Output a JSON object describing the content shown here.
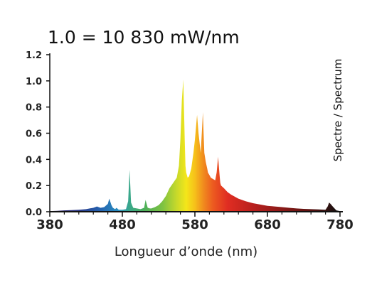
{
  "chart_data": {
    "type": "area",
    "title": "1.0 = 10 830 mW/nm",
    "xlabel": "Longueur d’onde (nm)",
    "ylabel": "",
    "side_label": "Spectre / Spectrum",
    "xlim": [
      380,
      780
    ],
    "ylim": [
      0,
      1.2
    ],
    "x_ticks": [
      "380",
      "480",
      "580",
      "680",
      "780"
    ],
    "y_ticks": [
      "0.0",
      "0.2",
      "0.4",
      "0.6",
      "0.8",
      "1.0",
      "1.2"
    ],
    "grid": false,
    "legend": "none",
    "fill": "rainbow spectrum gradient by wavelength",
    "x": [
      380,
      390,
      400,
      410,
      420,
      430,
      435,
      440,
      445,
      450,
      455,
      460,
      462,
      465,
      467,
      470,
      472,
      475,
      480,
      485,
      488,
      490,
      492,
      495,
      500,
      505,
      510,
      512,
      515,
      518,
      520,
      525,
      530,
      535,
      540,
      545,
      550,
      555,
      558,
      560,
      562,
      564,
      566,
      567,
      568,
      569,
      570,
      572,
      575,
      578,
      580,
      583,
      585,
      588,
      590,
      591,
      592,
      593,
      595,
      597,
      598,
      599,
      600,
      602,
      605,
      608,
      610,
      612,
      614,
      615,
      616,
      618,
      620,
      625,
      630,
      640,
      650,
      660,
      670,
      680,
      690,
      700,
      710,
      720,
      730,
      740,
      750,
      760,
      763,
      765,
      767,
      770,
      775,
      780
    ],
    "y": [
      0.005,
      0.007,
      0.01,
      0.012,
      0.015,
      0.02,
      0.025,
      0.03,
      0.04,
      0.03,
      0.035,
      0.06,
      0.1,
      0.05,
      0.03,
      0.02,
      0.03,
      0.015,
      0.015,
      0.02,
      0.08,
      0.32,
      0.07,
      0.03,
      0.025,
      0.02,
      0.03,
      0.09,
      0.03,
      0.025,
      0.025,
      0.035,
      0.05,
      0.08,
      0.12,
      0.18,
      0.22,
      0.26,
      0.35,
      0.55,
      0.85,
      1.01,
      0.55,
      0.35,
      0.3,
      0.28,
      0.26,
      0.27,
      0.33,
      0.45,
      0.55,
      0.74,
      0.6,
      0.45,
      0.65,
      0.76,
      0.6,
      0.45,
      0.38,
      0.33,
      0.3,
      0.29,
      0.28,
      0.26,
      0.25,
      0.24,
      0.3,
      0.42,
      0.28,
      0.22,
      0.2,
      0.19,
      0.18,
      0.15,
      0.13,
      0.1,
      0.08,
      0.065,
      0.055,
      0.045,
      0.04,
      0.035,
      0.03,
      0.025,
      0.022,
      0.02,
      0.018,
      0.015,
      0.04,
      0.07,
      0.06,
      0.04,
      0.01,
      0.005
    ]
  }
}
